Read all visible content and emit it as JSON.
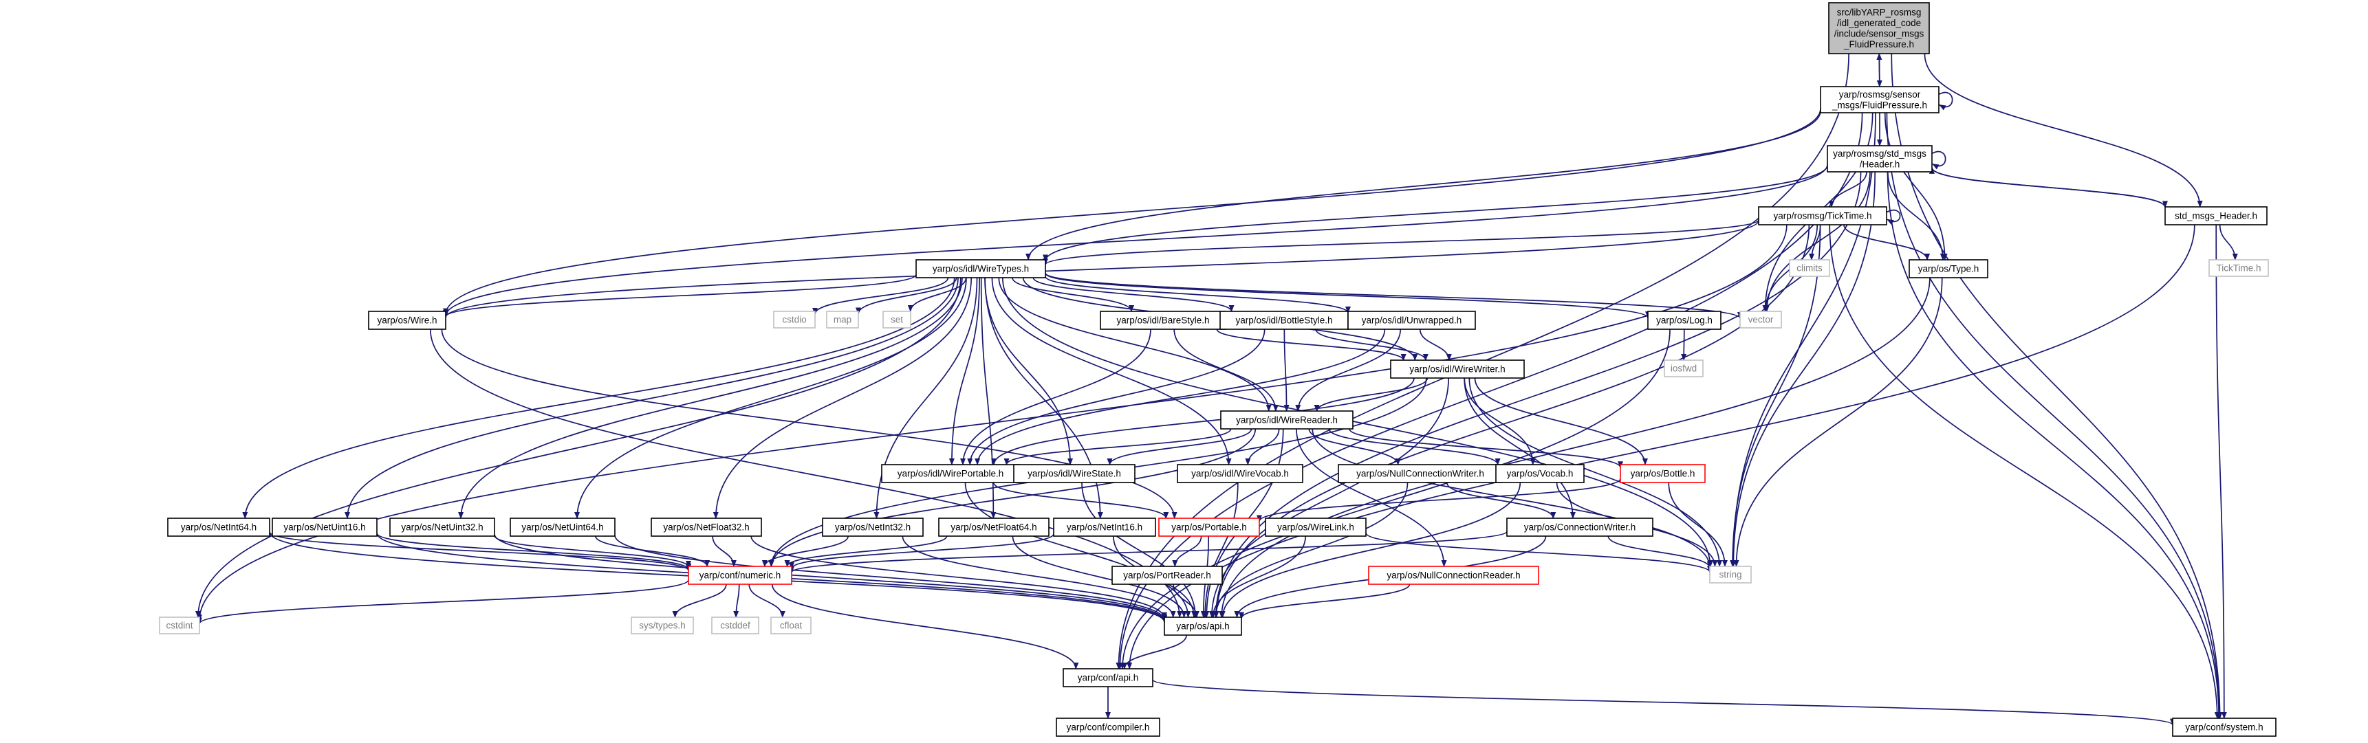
{
  "colors": {
    "edge": "#191970",
    "root_fill": "#bfbfbf",
    "box_stroke": "#000000",
    "external_stroke": "#bfbfbf",
    "external_text": "#808080",
    "truncated_stroke": "#ff0000",
    "text": "#000000"
  },
  "nodes": [
    {
      "id": "root",
      "label": [
        "src/libYARP_rosmsg",
        "/idl_generated_code",
        "/include/sensor_msgs",
        "_FluidPressure.h"
      ],
      "kind": "root"
    },
    {
      "id": "fluid",
      "label": [
        "yarp/rosmsg/sensor",
        "_msgs/FluidPressure.h"
      ],
      "kind": "file"
    },
    {
      "id": "stdheader",
      "label": [
        "yarp/rosmsg/std_msgs",
        "/Header.h"
      ],
      "kind": "file"
    },
    {
      "id": "stdmsgs",
      "label": [
        "std_msgs_Header.h"
      ],
      "kind": "file"
    },
    {
      "id": "ticktime",
      "label": [
        "yarp/rosmsg/TickTime.h"
      ],
      "kind": "file"
    },
    {
      "id": "climits",
      "label": [
        "climits"
      ],
      "kind": "external"
    },
    {
      "id": "type",
      "label": [
        "yarp/os/Type.h"
      ],
      "kind": "file"
    },
    {
      "id": "tick",
      "label": [
        "TickTime.h"
      ],
      "kind": "external"
    },
    {
      "id": "wiretypes",
      "label": [
        "yarp/os/idl/WireTypes.h"
      ],
      "kind": "file"
    },
    {
      "id": "wire",
      "label": [
        "yarp/os/Wire.h"
      ],
      "kind": "file"
    },
    {
      "id": "cstdio",
      "label": [
        "cstdio"
      ],
      "kind": "external"
    },
    {
      "id": "map",
      "label": [
        "map"
      ],
      "kind": "external"
    },
    {
      "id": "set",
      "label": [
        "set"
      ],
      "kind": "external"
    },
    {
      "id": "barestyle",
      "label": [
        "yarp/os/idl/BareStyle.h"
      ],
      "kind": "file"
    },
    {
      "id": "bottlestyle",
      "label": [
        "yarp/os/idl/BottleStyle.h"
      ],
      "kind": "file"
    },
    {
      "id": "unwrapped",
      "label": [
        "yarp/os/idl/Unwrapped.h"
      ],
      "kind": "file"
    },
    {
      "id": "log",
      "label": [
        "yarp/os/Log.h"
      ],
      "kind": "file"
    },
    {
      "id": "vector",
      "label": [
        "vector"
      ],
      "kind": "external"
    },
    {
      "id": "iosfwd",
      "label": [
        "iosfwd"
      ],
      "kind": "external"
    },
    {
      "id": "wirewriter",
      "label": [
        "yarp/os/idl/WireWriter.h"
      ],
      "kind": "file"
    },
    {
      "id": "wirereader",
      "label": [
        "yarp/os/idl/WireReader.h"
      ],
      "kind": "file"
    },
    {
      "id": "wireportable",
      "label": [
        "yarp/os/idl/WirePortable.h"
      ],
      "kind": "file"
    },
    {
      "id": "wirestate",
      "label": [
        "yarp/os/idl/WireState.h"
      ],
      "kind": "file"
    },
    {
      "id": "wirevocab",
      "label": [
        "yarp/os/idl/WireVocab.h"
      ],
      "kind": "file"
    },
    {
      "id": "nullconnwriter",
      "label": [
        "yarp/os/NullConnectionWriter.h"
      ],
      "kind": "file"
    },
    {
      "id": "vocab",
      "label": [
        "yarp/os/Vocab.h"
      ],
      "kind": "file"
    },
    {
      "id": "bottle",
      "label": [
        "yarp/os/Bottle.h"
      ],
      "kind": "truncated"
    },
    {
      "id": "netint64",
      "label": [
        "yarp/os/NetInt64.h"
      ],
      "kind": "file"
    },
    {
      "id": "netuint16",
      "label": [
        "yarp/os/NetUint16.h"
      ],
      "kind": "file"
    },
    {
      "id": "netuint32",
      "label": [
        "yarp/os/NetUint32.h"
      ],
      "kind": "file"
    },
    {
      "id": "netuint64",
      "label": [
        "yarp/os/NetUint64.h"
      ],
      "kind": "file"
    },
    {
      "id": "netfloat32",
      "label": [
        "yarp/os/NetFloat32.h"
      ],
      "kind": "file"
    },
    {
      "id": "netint32",
      "label": [
        "yarp/os/NetInt32.h"
      ],
      "kind": "file"
    },
    {
      "id": "netfloat64",
      "label": [
        "yarp/os/NetFloat64.h"
      ],
      "kind": "file"
    },
    {
      "id": "netint16",
      "label": [
        "yarp/os/NetInt16.h"
      ],
      "kind": "file"
    },
    {
      "id": "portable",
      "label": [
        "yarp/os/Portable.h"
      ],
      "kind": "truncated"
    },
    {
      "id": "wirelink",
      "label": [
        "yarp/os/WireLink.h"
      ],
      "kind": "file"
    },
    {
      "id": "connwriter",
      "label": [
        "yarp/os/ConnectionWriter.h"
      ],
      "kind": "file"
    },
    {
      "id": "string",
      "label": [
        "string"
      ],
      "kind": "external"
    },
    {
      "id": "numeric",
      "label": [
        "yarp/conf/numeric.h"
      ],
      "kind": "truncated"
    },
    {
      "id": "portreader",
      "label": [
        "yarp/os/PortReader.h"
      ],
      "kind": "file"
    },
    {
      "id": "nullconnreader",
      "label": [
        "yarp/os/NullConnectionReader.h"
      ],
      "kind": "truncated"
    },
    {
      "id": "cstdint",
      "label": [
        "cstdint"
      ],
      "kind": "external"
    },
    {
      "id": "systypes",
      "label": [
        "sys/types.h"
      ],
      "kind": "external"
    },
    {
      "id": "cstddef",
      "label": [
        "cstddef"
      ],
      "kind": "external"
    },
    {
      "id": "cfloat",
      "label": [
        "cfloat"
      ],
      "kind": "external"
    },
    {
      "id": "osapi",
      "label": [
        "yarp/os/api.h"
      ],
      "kind": "file"
    },
    {
      "id": "confapi",
      "label": [
        "yarp/conf/api.h"
      ],
      "kind": "file"
    },
    {
      "id": "compiler",
      "label": [
        "yarp/conf/compiler.h"
      ],
      "kind": "file"
    },
    {
      "id": "system",
      "label": [
        "yarp/conf/system.h"
      ],
      "kind": "file"
    }
  ],
  "edges": [
    [
      "root",
      "fluid"
    ],
    [
      "root",
      "stdmsgs"
    ],
    [
      "root",
      "confapi"
    ],
    [
      "root",
      "system"
    ],
    [
      "fluid",
      "root"
    ],
    [
      "fluid",
      "fluid"
    ],
    [
      "fluid",
      "stdheader"
    ],
    [
      "fluid",
      "wiretypes"
    ],
    [
      "fluid",
      "wire"
    ],
    [
      "fluid",
      "type"
    ],
    [
      "fluid",
      "vector"
    ],
    [
      "fluid",
      "string"
    ],
    [
      "fluid",
      "system"
    ],
    [
      "fluid",
      "confapi"
    ],
    [
      "stdheader",
      "stdheader"
    ],
    [
      "stdheader",
      "ticktime"
    ],
    [
      "stdheader",
      "stdmsgs"
    ],
    [
      "stdheader",
      "wiretypes"
    ],
    [
      "stdheader",
      "wire"
    ],
    [
      "stdheader",
      "type"
    ],
    [
      "stdheader",
      "vector"
    ],
    [
      "stdheader",
      "string"
    ],
    [
      "stdheader",
      "system"
    ],
    [
      "stdheader",
      "osapi"
    ],
    [
      "stdmsgs",
      "stdheader"
    ],
    [
      "stdmsgs",
      "tick"
    ],
    [
      "stdmsgs",
      "system"
    ],
    [
      "stdmsgs",
      "confapi"
    ],
    [
      "ticktime",
      "ticktime"
    ],
    [
      "ticktime",
      "climits"
    ],
    [
      "ticktime",
      "type"
    ],
    [
      "ticktime",
      "wiretypes"
    ],
    [
      "ticktime",
      "wire"
    ],
    [
      "ticktime",
      "vector"
    ],
    [
      "ticktime",
      "string"
    ],
    [
      "ticktime",
      "cstdint"
    ],
    [
      "ticktime",
      "osapi"
    ],
    [
      "ticktime",
      "system"
    ],
    [
      "type",
      "string"
    ],
    [
      "type",
      "osapi"
    ],
    [
      "wiretypes",
      "wire"
    ],
    [
      "wiretypes",
      "cstdio"
    ],
    [
      "wiretypes",
      "map"
    ],
    [
      "wiretypes",
      "set"
    ],
    [
      "wiretypes",
      "barestyle"
    ],
    [
      "wiretypes",
      "bottlestyle"
    ],
    [
      "wiretypes",
      "unwrapped"
    ],
    [
      "wiretypes",
      "log"
    ],
    [
      "wiretypes",
      "vector"
    ],
    [
      "wiretypes",
      "wirewriter"
    ],
    [
      "wiretypes",
      "wirereader"
    ],
    [
      "wiretypes",
      "wireportable"
    ],
    [
      "wiretypes",
      "wirestate"
    ],
    [
      "wiretypes",
      "wirevocab"
    ],
    [
      "wiretypes",
      "netint64"
    ],
    [
      "wiretypes",
      "netuint16"
    ],
    [
      "wiretypes",
      "netuint32"
    ],
    [
      "wiretypes",
      "netuint64"
    ],
    [
      "wiretypes",
      "netfloat32"
    ],
    [
      "wiretypes",
      "netint32"
    ],
    [
      "wiretypes",
      "netfloat64"
    ],
    [
      "wiretypes",
      "netint16"
    ],
    [
      "wiretypes",
      "string"
    ],
    [
      "wiretypes",
      "cstdint"
    ],
    [
      "wire",
      "portable"
    ],
    [
      "wire",
      "osapi"
    ],
    [
      "barestyle",
      "wirereader"
    ],
    [
      "barestyle",
      "wirewriter"
    ],
    [
      "barestyle",
      "wireportable"
    ],
    [
      "bottlestyle",
      "wirereader"
    ],
    [
      "bottlestyle",
      "wirewriter"
    ],
    [
      "bottlestyle",
      "wireportable"
    ],
    [
      "unwrapped",
      "wirereader"
    ],
    [
      "unwrapped",
      "wirewriter"
    ],
    [
      "unwrapped",
      "wireportable"
    ],
    [
      "log",
      "iosfwd"
    ],
    [
      "log",
      "confapi"
    ],
    [
      "wirewriter",
      "wirereader"
    ],
    [
      "wirewriter",
      "wireportable"
    ],
    [
      "wirewriter",
      "vocab"
    ],
    [
      "wirewriter",
      "bottle"
    ],
    [
      "wirewriter",
      "connwriter"
    ],
    [
      "wirewriter",
      "string"
    ],
    [
      "wirewriter",
      "numeric"
    ],
    [
      "wirewriter",
      "osapi"
    ],
    [
      "wirereader",
      "wireportable"
    ],
    [
      "wirereader",
      "wirestate"
    ],
    [
      "wirereader",
      "wirevocab"
    ],
    [
      "wirereader",
      "nullconnwriter"
    ],
    [
      "wirereader",
      "vocab"
    ],
    [
      "wirereader",
      "bottle"
    ],
    [
      "wirereader",
      "nullconnreader"
    ],
    [
      "wirereader",
      "string"
    ],
    [
      "wirereader",
      "numeric"
    ],
    [
      "wirereader",
      "osapi"
    ],
    [
      "wireportable",
      "portable"
    ],
    [
      "wireportable",
      "osapi"
    ],
    [
      "wirestate",
      "osapi"
    ],
    [
      "wirevocab",
      "osapi"
    ],
    [
      "nullconnwriter",
      "connwriter"
    ],
    [
      "nullconnwriter",
      "osapi"
    ],
    [
      "vocab",
      "string"
    ],
    [
      "vocab",
      "osapi"
    ],
    [
      "bottle",
      "portable"
    ],
    [
      "bottle",
      "string"
    ],
    [
      "netint64",
      "numeric"
    ],
    [
      "netint64",
      "osapi"
    ],
    [
      "netuint16",
      "numeric"
    ],
    [
      "netuint16",
      "osapi"
    ],
    [
      "netuint32",
      "numeric"
    ],
    [
      "netuint32",
      "osapi"
    ],
    [
      "netuint64",
      "numeric"
    ],
    [
      "netuint64",
      "osapi"
    ],
    [
      "netfloat32",
      "numeric"
    ],
    [
      "netfloat32",
      "osapi"
    ],
    [
      "netint32",
      "numeric"
    ],
    [
      "netint32",
      "osapi"
    ],
    [
      "netfloat64",
      "numeric"
    ],
    [
      "netfloat64",
      "osapi"
    ],
    [
      "netint16",
      "numeric"
    ],
    [
      "netint16",
      "osapi"
    ],
    [
      "portable",
      "portreader"
    ],
    [
      "portable",
      "osapi"
    ],
    [
      "wirelink",
      "osapi"
    ],
    [
      "wirelink",
      "string"
    ],
    [
      "connwriter",
      "string"
    ],
    [
      "connwriter",
      "numeric"
    ],
    [
      "connwriter",
      "osapi"
    ],
    [
      "numeric",
      "cstdint"
    ],
    [
      "numeric",
      "systypes"
    ],
    [
      "numeric",
      "cstddef"
    ],
    [
      "numeric",
      "cfloat"
    ],
    [
      "numeric",
      "confapi"
    ],
    [
      "portreader",
      "osapi"
    ],
    [
      "nullconnreader",
      "osapi"
    ],
    [
      "osapi",
      "confapi"
    ],
    [
      "confapi",
      "compiler"
    ],
    [
      "confapi",
      "system"
    ]
  ]
}
